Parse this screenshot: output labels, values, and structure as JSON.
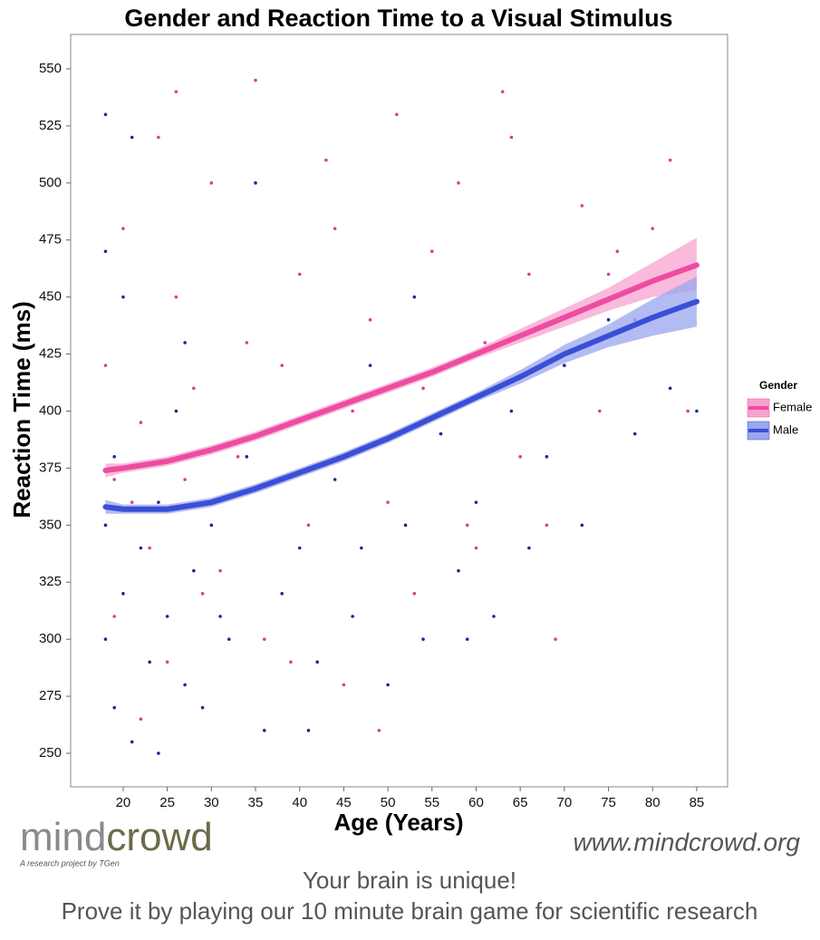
{
  "chart_data": {
    "type": "scatter",
    "title": "Gender and Reaction Time to a Visual Stimulus",
    "x_label": "Age (Years)",
    "y_label": "Reaction Time (ms)",
    "legend_title": "Gender",
    "legend_position": "right",
    "grid": false,
    "xlim": [
      14.05,
      88.5
    ],
    "ylim": [
      235.3,
      565.1
    ],
    "xticks": [
      20,
      25,
      30,
      35,
      40,
      45,
      50,
      55,
      60,
      65,
      70,
      75,
      80,
      85
    ],
    "yticks": [
      250,
      275,
      300,
      325,
      350,
      375,
      400,
      425,
      450,
      475,
      500,
      525,
      550
    ],
    "series": [
      {
        "name": "Female",
        "color": "#d93c9c",
        "line_color": "#ee4ca0",
        "band_color": "#f7a3d0",
        "x": [
          18,
          19,
          20,
          21,
          22,
          23,
          24,
          25,
          26,
          27,
          28,
          30,
          31,
          33,
          35,
          36,
          38,
          40,
          41,
          43,
          45,
          46,
          48,
          50,
          51,
          53,
          55,
          56,
          58,
          60,
          61,
          63,
          65,
          66,
          68,
          70,
          72,
          74,
          76,
          78,
          80,
          82,
          84,
          19,
          22,
          26,
          29,
          34,
          39,
          44,
          49,
          54,
          59,
          64,
          69,
          75
        ],
        "values": [
          420,
          310,
          480,
          360,
          395,
          340,
          520,
          290,
          450,
          370,
          410,
          500,
          330,
          380,
          545,
          300,
          420,
          460,
          350,
          510,
          280,
          400,
          440,
          360,
          530,
          320,
          470,
          390,
          500,
          340,
          430,
          540,
          380,
          460,
          350,
          420,
          490,
          400,
          470,
          440,
          480,
          510,
          400,
          370,
          265,
          540,
          320,
          430,
          290,
          480,
          260,
          410,
          350,
          520,
          300,
          460
        ],
        "fit": {
          "x": [
            18,
            20,
            25,
            30,
            35,
            40,
            45,
            50,
            55,
            60,
            65,
            70,
            75,
            80,
            85
          ],
          "values": [
            374,
            375,
            378,
            383,
            389,
            396,
            403,
            410,
            417,
            425,
            433,
            441,
            449,
            457,
            464
          ],
          "lower": [
            371,
            373,
            376,
            381,
            387,
            394,
            401,
            408,
            415,
            423,
            430,
            437,
            444,
            450,
            453
          ],
          "upper": [
            377,
            377,
            380,
            385,
            391,
            398,
            405,
            412,
            419,
            427,
            436,
            445,
            454,
            465,
            476
          ]
        }
      },
      {
        "name": "Male",
        "color": "#1e2a8c",
        "line_color": "#3a4fd6",
        "band_color": "#9aa6ee",
        "x": [
          18,
          18,
          18,
          19,
          19,
          20,
          20,
          21,
          22,
          23,
          24,
          25,
          26,
          27,
          28,
          29,
          30,
          32,
          34,
          36,
          38,
          40,
          42,
          44,
          46,
          48,
          50,
          52,
          54,
          56,
          58,
          60,
          62,
          64,
          66,
          68,
          70,
          72,
          75,
          78,
          82,
          85,
          18,
          21,
          24,
          27,
          31,
          35,
          41,
          47,
          53,
          59
        ],
        "values": [
          300,
          350,
          530,
          270,
          380,
          320,
          450,
          255,
          340,
          290,
          360,
          310,
          400,
          280,
          330,
          270,
          350,
          300,
          380,
          260,
          320,
          340,
          290,
          370,
          310,
          420,
          280,
          350,
          300,
          390,
          330,
          360,
          310,
          400,
          340,
          380,
          420,
          350,
          440,
          390,
          410,
          400,
          470,
          520,
          250,
          430,
          310,
          500,
          260,
          340,
          450,
          300
        ],
        "fit": {
          "x": [
            18,
            20,
            25,
            30,
            35,
            40,
            45,
            50,
            55,
            60,
            65,
            70,
            75,
            80,
            85
          ],
          "values": [
            358,
            357,
            357,
            360,
            366,
            373,
            380,
            388,
            397,
            406,
            415,
            425,
            433,
            441,
            448
          ],
          "lower": [
            355,
            355,
            355,
            358,
            364,
            371,
            378,
            386,
            395,
            404,
            412,
            421,
            428,
            433,
            437
          ],
          "upper": [
            361,
            359,
            359,
            362,
            368,
            375,
            382,
            390,
            399,
            408,
            418,
            429,
            438,
            449,
            459
          ]
        }
      }
    ]
  },
  "footer": {
    "logo_left": "mind",
    "logo_right": "crowd",
    "logo_sub": "A research project by TGen",
    "url": "www.mindcrowd.org",
    "line1": "Your brain is unique!",
    "line2": "Prove it by playing our 10 minute brain game for scientific research"
  }
}
